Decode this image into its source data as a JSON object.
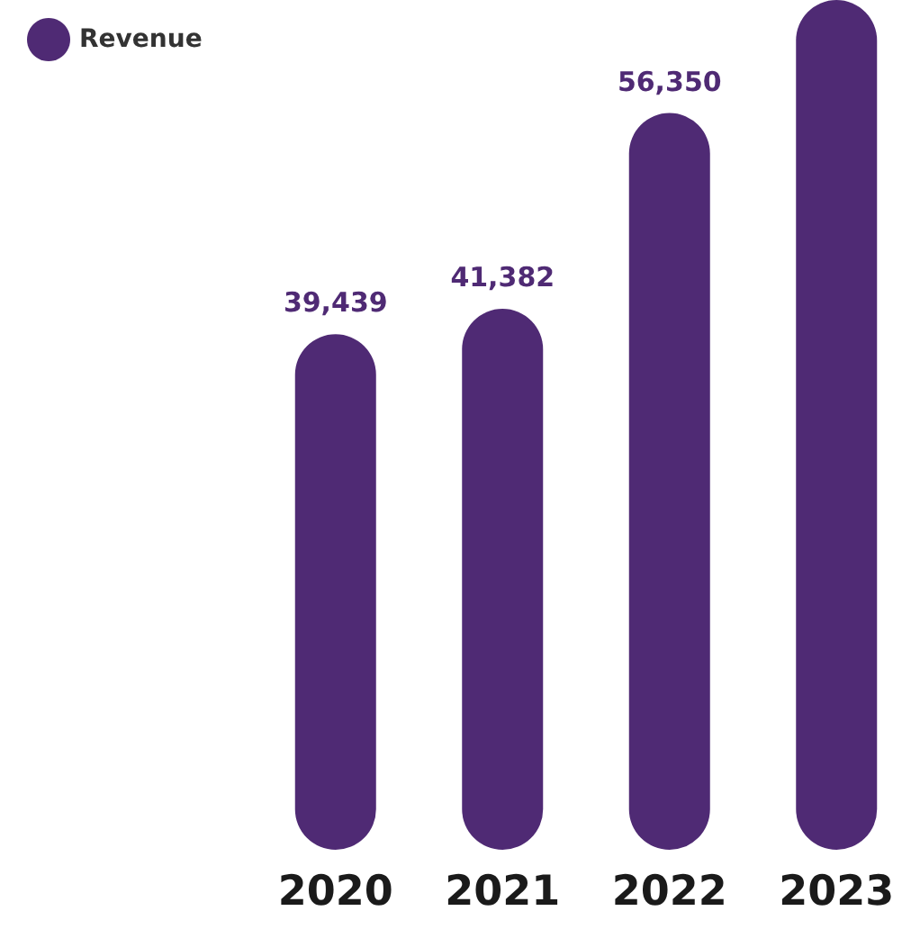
{
  "chart_data": {
    "type": "bar",
    "categories": [
      "2020",
      "2021",
      "2022",
      "2023"
    ],
    "series": [
      {
        "name": "Revenue",
        "color": "#4f2a74",
        "values": [
          39439,
          41382,
          56350,
          65000
        ],
        "value_labels": [
          "39,439",
          "41,382",
          "56,350",
          null
        ]
      }
    ],
    "ylim": [
      0,
      65000
    ],
    "tick_labels": "x",
    "legend": "top left"
  }
}
